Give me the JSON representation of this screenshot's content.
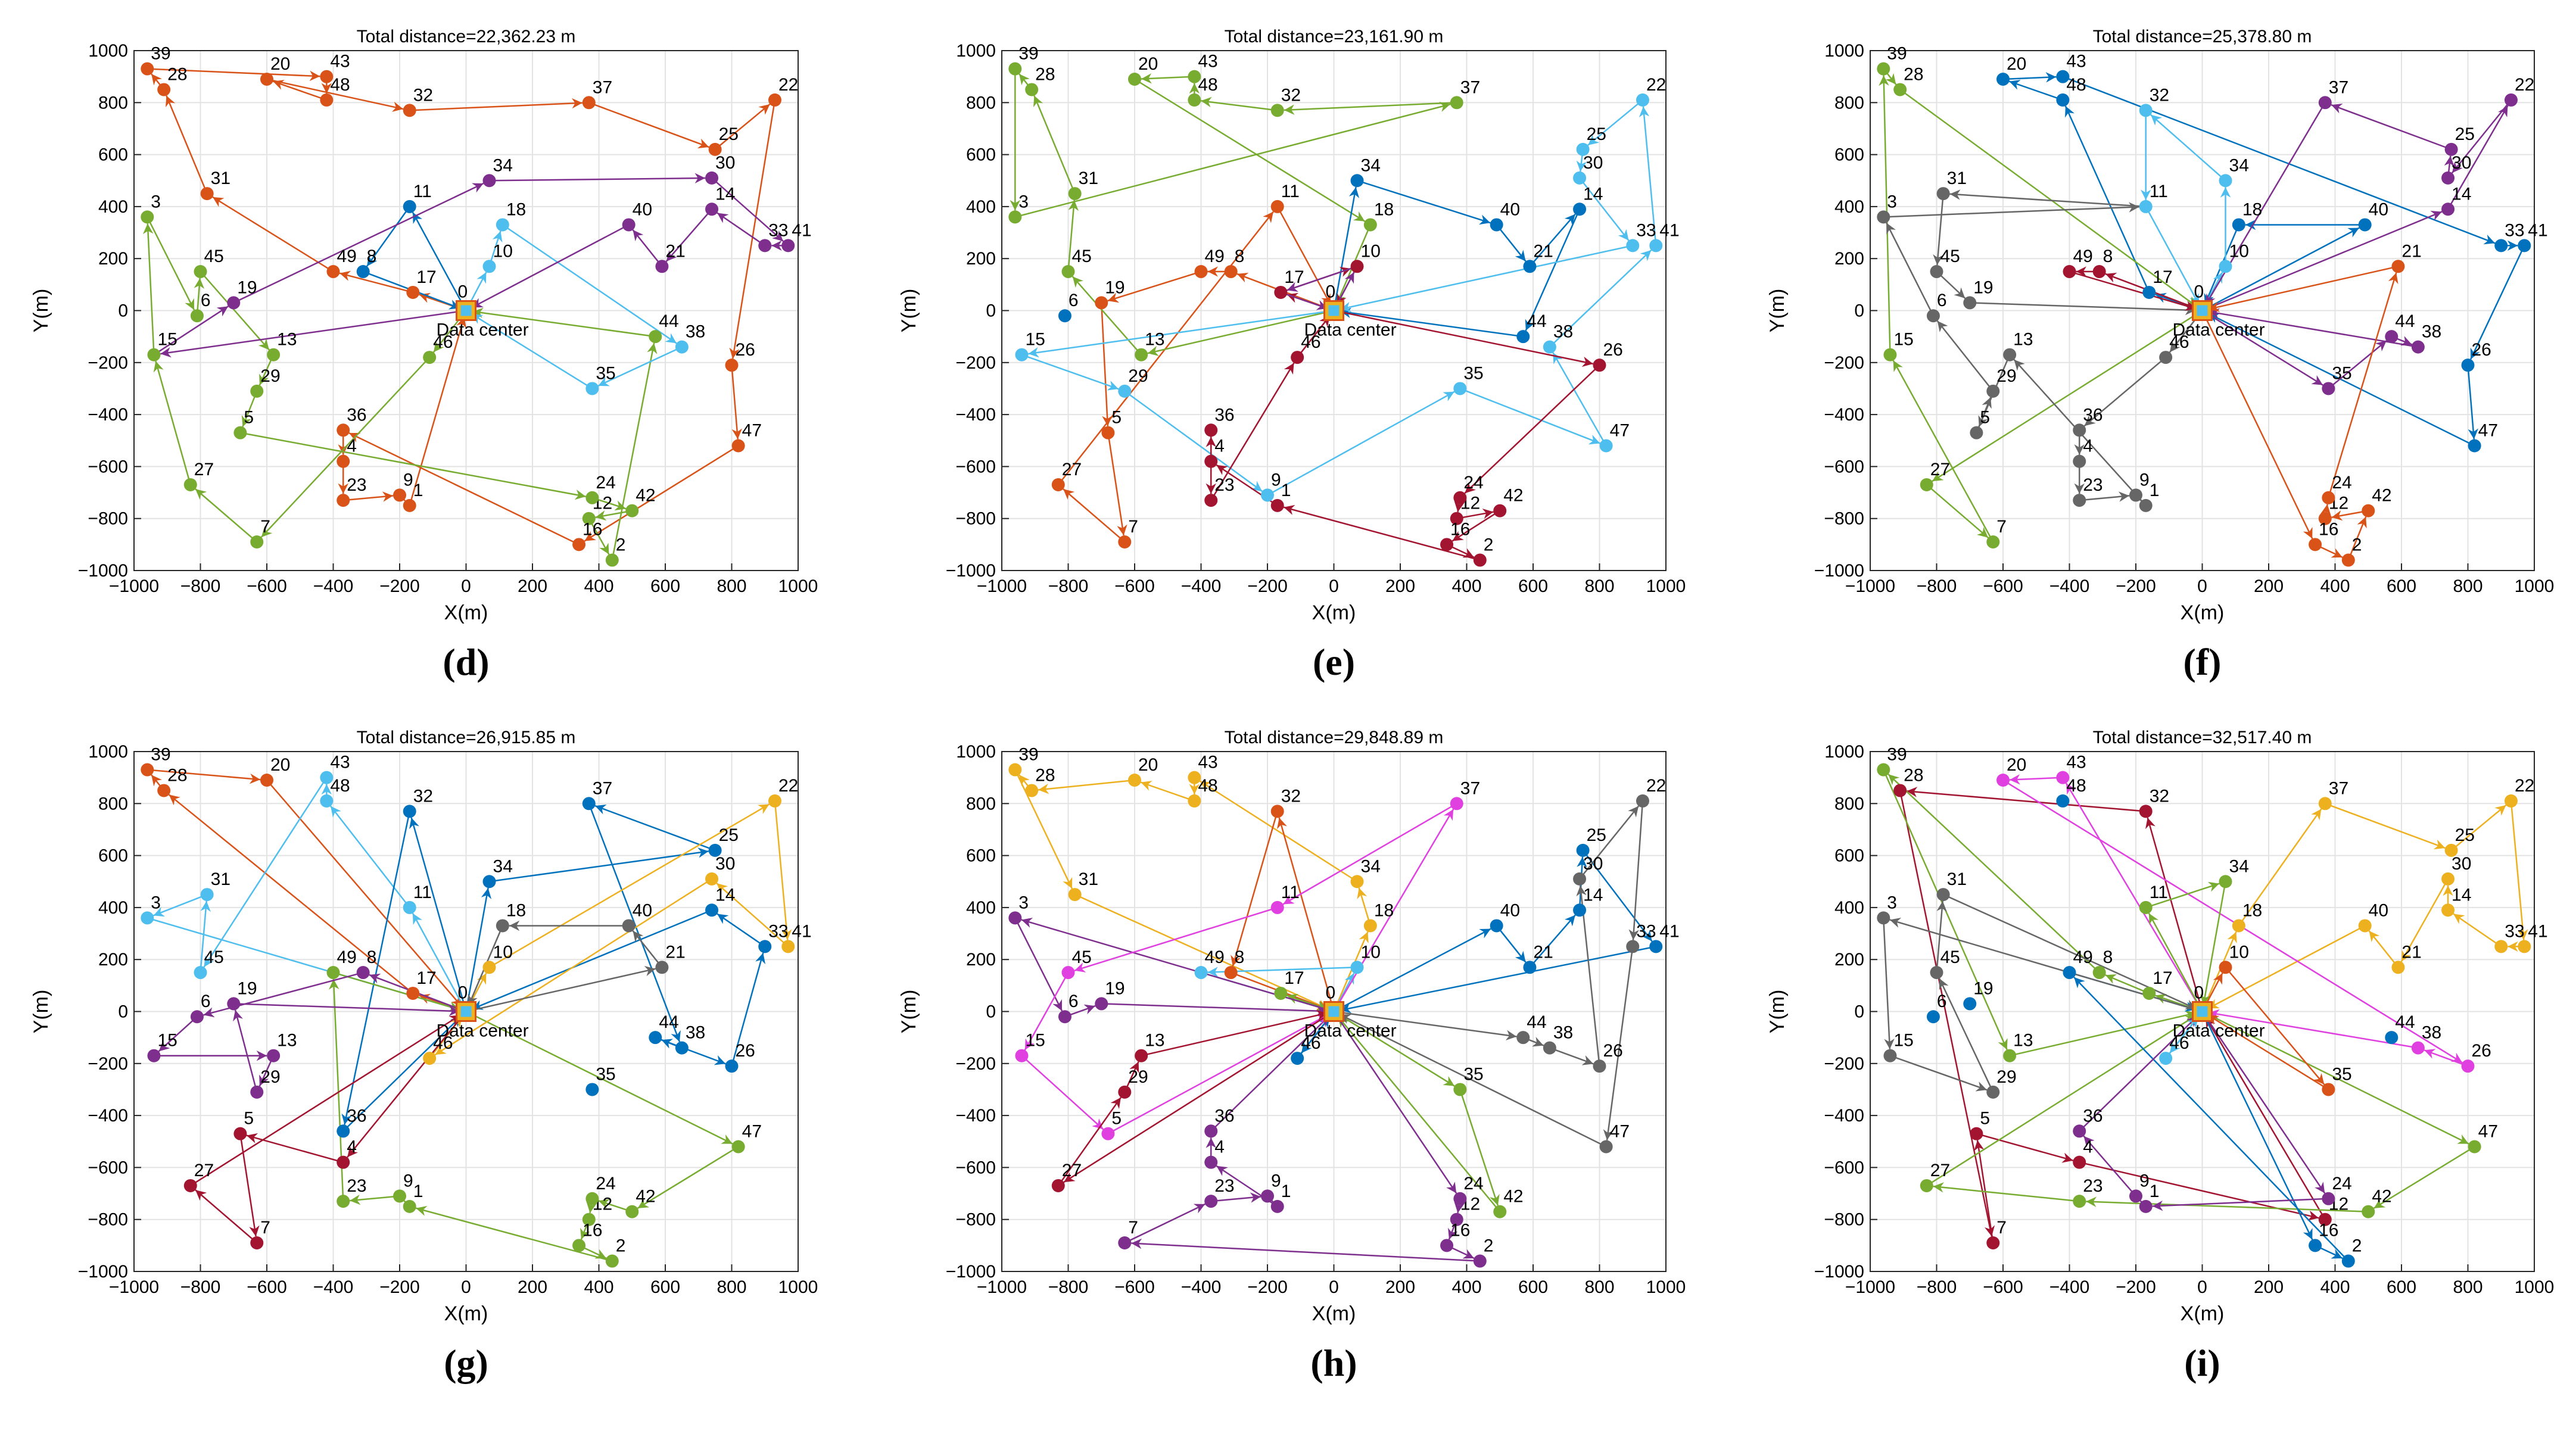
{
  "chart_data": [
    {
      "type": "scatter",
      "panel": "(d)",
      "title": "Total distance=22,362.23 m",
      "xlabel": "X(m)",
      "ylabel": "Y(m)",
      "xlim": [
        -1000,
        1000
      ],
      "ylim": [
        -1000,
        1000
      ],
      "xticks": [
        "−1000",
        "−800",
        "−600",
        "−400",
        "−200",
        "0",
        "200",
        "400",
        "600",
        "800",
        "1000"
      ],
      "yticks": [
        "−1000",
        "−800",
        "−600",
        "−400",
        "−200",
        "0",
        "200",
        "400",
        "600",
        "800",
        "1000"
      ],
      "depot_label": "Data center",
      "routes": [
        {
          "color": "#D95319",
          "path": [
            0,
            17,
            49,
            31,
            28,
            39,
            43,
            48,
            20,
            32,
            37,
            25,
            22,
            26,
            47,
            16,
            36,
            4,
            23,
            9,
            1,
            0
          ]
        },
        {
          "color": "#77AC30",
          "path": [
            0,
            46,
            7,
            27,
            15,
            3,
            6,
            45,
            13,
            29,
            5,
            24,
            42,
            12,
            2,
            44,
            0
          ]
        },
        {
          "color": "#0072BD",
          "path": [
            0,
            11,
            8,
            0
          ]
        },
        {
          "color": "#4DBEEE",
          "path": [
            0,
            10,
            18,
            38,
            35,
            0
          ]
        },
        {
          "color": "#7E2F8E",
          "path": [
            0,
            15,
            19,
            34,
            30,
            41,
            33,
            14,
            21,
            40,
            0
          ]
        }
      ]
    },
    {
      "type": "scatter",
      "panel": "(e)",
      "title": "Total distance=23,161.90 m",
      "xlabel": "X(m)",
      "ylabel": "Y(m)",
      "xlim": [
        -1000,
        1000
      ],
      "ylim": [
        -1000,
        1000
      ],
      "xticks": [
        "−1000",
        "−800",
        "−600",
        "−400",
        "−200",
        "0",
        "200",
        "400",
        "600",
        "800",
        "1000"
      ],
      "yticks": [
        "−1000",
        "−800",
        "−600",
        "−400",
        "−200",
        "0",
        "200",
        "400",
        "600",
        "800",
        "1000"
      ],
      "depot_label": "Data center",
      "routes": [
        {
          "color": "#D95319",
          "path": [
            0,
            8,
            49,
            19,
            5,
            7,
            27,
            11,
            0
          ]
        },
        {
          "color": "#77AC30",
          "path": [
            0,
            13,
            45,
            31,
            28,
            39,
            3,
            37,
            32,
            48,
            43,
            20,
            18,
            0
          ]
        },
        {
          "color": "#0072BD",
          "path": [
            0,
            34,
            40,
            21,
            14,
            44,
            0
          ]
        },
        {
          "color": "#4DBEEE",
          "path": [
            0,
            15,
            29,
            9,
            35,
            47,
            38,
            41,
            22,
            25,
            30,
            33,
            0
          ]
        },
        {
          "color": "#A2142F",
          "path": [
            0,
            17,
            10,
            0,
            26,
            24,
            12,
            42,
            16,
            2,
            1,
            4,
            36,
            23,
            46,
            0
          ]
        },
        {
          "color": "#7E2F8E",
          "path": [
            0,
            10,
            17,
            0
          ]
        }
      ]
    },
    {
      "type": "scatter",
      "panel": "(f)",
      "title": "Total distance=25,378.80 m",
      "xlabel": "X(m)",
      "ylabel": "Y(m)",
      "xlim": [
        -1000,
        1000
      ],
      "ylim": [
        -1000,
        1000
      ],
      "xticks": [
        "−1000",
        "−800",
        "−600",
        "−400",
        "−200",
        "0",
        "200",
        "400",
        "600",
        "800",
        "1000"
      ],
      "yticks": [
        "−1000",
        "−800",
        "−600",
        "−400",
        "−200",
        "0",
        "200",
        "400",
        "600",
        "800",
        "1000"
      ],
      "depot_label": "Data center",
      "routes": [
        {
          "color": "#0072BD",
          "path": [
            0,
            17,
            48,
            20,
            43,
            33,
            41,
            26,
            47,
            0,
            40,
            18,
            0
          ]
        },
        {
          "color": "#4DBEEE",
          "path": [
            0,
            10,
            34,
            32,
            11,
            0
          ]
        },
        {
          "color": "#77AC30",
          "path": [
            0,
            27,
            7,
            15,
            39,
            28,
            0
          ]
        },
        {
          "color": "#7E2F8E",
          "path": [
            0,
            14,
            22,
            30,
            25,
            37,
            0,
            35,
            44,
            38,
            0
          ]
        },
        {
          "color": "#D95319",
          "path": [
            0,
            16,
            2,
            42,
            12,
            24,
            21,
            0
          ]
        },
        {
          "color": "#666666",
          "path": [
            0,
            46,
            36,
            4,
            23,
            9,
            1,
            13,
            5,
            29,
            6,
            3,
            11,
            31,
            45,
            19,
            0
          ]
        },
        {
          "color": "#A2142F",
          "path": [
            0,
            8,
            49,
            0
          ]
        }
      ]
    },
    {
      "type": "scatter",
      "panel": "(g)",
      "title": "Total distance=26,915.85 m",
      "xlabel": "X(m)",
      "ylabel": "Y(m)",
      "xlim": [
        -1000,
        1000
      ],
      "ylim": [
        -1000,
        1000
      ],
      "xticks": [
        "−1000",
        "−800",
        "−600",
        "−400",
        "−200",
        "0",
        "200",
        "400",
        "600",
        "800",
        "1000"
      ],
      "yticks": [
        "−1000",
        "−800",
        "−600",
        "−400",
        "−200",
        "0",
        "200",
        "400",
        "600",
        "800",
        "1000"
      ],
      "depot_label": "Data center",
      "routes": [
        {
          "color": "#D95319",
          "path": [
            0,
            17,
            28,
            39,
            20,
            0
          ]
        },
        {
          "color": "#4DBEEE",
          "path": [
            0,
            11,
            48,
            43,
            45,
            31,
            3,
            0
          ]
        },
        {
          "color": "#0072BD",
          "path": [
            0,
            34,
            25,
            37,
            38,
            44,
            26,
            33,
            14,
            0,
            32,
            36,
            0
          ]
        },
        {
          "color": "#77AC30",
          "path": [
            0,
            47,
            42,
            24,
            12,
            16,
            2,
            1,
            9,
            23,
            49,
            0
          ]
        },
        {
          "color": "#EDB120",
          "path": [
            0,
            10,
            22,
            41,
            30,
            46,
            0
          ]
        },
        {
          "color": "#666666",
          "path": [
            0,
            21,
            40,
            18,
            0
          ]
        },
        {
          "color": "#7E2F8E",
          "path": [
            0,
            8,
            6,
            15,
            13,
            29,
            19,
            0
          ]
        },
        {
          "color": "#A2142F",
          "path": [
            0,
            4,
            5,
            7,
            27,
            0
          ]
        }
      ]
    },
    {
      "type": "scatter",
      "panel": "(h)",
      "title": "Total distance=29,848.89 m",
      "xlabel": "X(m)",
      "ylabel": "Y(m)",
      "xlim": [
        -1000,
        1000
      ],
      "ylim": [
        -1000,
        1000
      ],
      "xticks": [
        "−1000",
        "−800",
        "−600",
        "−400",
        "−200",
        "0",
        "200",
        "400",
        "600",
        "800",
        "1000"
      ],
      "yticks": [
        "−1000",
        "−800",
        "−600",
        "−400",
        "−200",
        "0",
        "200",
        "400",
        "600",
        "800",
        "1000"
      ],
      "depot_label": "Data center",
      "routes": [
        {
          "color": "#EDB120",
          "path": [
            0,
            18,
            34,
            43,
            48,
            20,
            28,
            39,
            31,
            0
          ]
        },
        {
          "color": "#D95319",
          "path": [
            0,
            32,
            8,
            0
          ]
        },
        {
          "color": "#4DBEEE",
          "path": [
            0,
            10,
            49,
            0
          ]
        },
        {
          "color": "#77AC30",
          "path": [
            0,
            17,
            0,
            35,
            42,
            0
          ]
        },
        {
          "color": "#0072BD",
          "path": [
            0,
            40,
            21,
            14,
            25,
            41,
            0,
            46,
            0
          ]
        },
        {
          "color": "#666666",
          "path": [
            0,
            44,
            38,
            26,
            30,
            22,
            33,
            47,
            0
          ]
        },
        {
          "color": "#7E2F8E",
          "path": [
            0,
            3,
            6,
            19,
            0,
            24,
            12,
            16,
            2,
            7,
            23,
            9,
            1,
            4,
            36,
            0
          ]
        },
        {
          "color": "#E040E0",
          "path": [
            0,
            37,
            11,
            45,
            15,
            5,
            0
          ]
        },
        {
          "color": "#A2142F",
          "path": [
            0,
            27,
            29,
            13,
            0
          ]
        }
      ]
    },
    {
      "type": "scatter",
      "panel": "(i)",
      "title": "Total distance=32,517.40 m",
      "xlabel": "X(m)",
      "ylabel": "Y(m)",
      "xlim": [
        -1000,
        1000
      ],
      "ylim": [
        -1000,
        1000
      ],
      "xticks": [
        "−1000",
        "−800",
        "−600",
        "−400",
        "−200",
        "0",
        "200",
        "400",
        "600",
        "800",
        "1000"
      ],
      "yticks": [
        "−1000",
        "−800",
        "−600",
        "−400",
        "−200",
        "0",
        "200",
        "400",
        "600",
        "800",
        "1000"
      ],
      "depot_label": "Data center",
      "routes": [
        {
          "color": "#EDB120",
          "path": [
            0,
            18,
            37,
            25,
            22,
            41,
            33,
            14,
            30,
            21,
            40,
            0
          ]
        },
        {
          "color": "#A2142F",
          "path": [
            0,
            32,
            28,
            7,
            5,
            4,
            12,
            0
          ]
        },
        {
          "color": "#E040E0",
          "path": [
            0,
            43,
            20,
            26,
            38,
            0
          ]
        },
        {
          "color": "#77AC30",
          "path": [
            0,
            47,
            42,
            23,
            27,
            0,
            17,
            8,
            39,
            13,
            0,
            11,
            34,
            0
          ]
        },
        {
          "color": "#0072BD",
          "path": [
            0,
            16,
            2,
            49,
            0
          ]
        },
        {
          "color": "#666666",
          "path": [
            0,
            3,
            15,
            29,
            45,
            31,
            0
          ]
        },
        {
          "color": "#D95319",
          "path": [
            0,
            10,
            35,
            0
          ]
        },
        {
          "color": "#7E2F8E",
          "path": [
            0,
            24,
            1,
            9,
            36,
            0
          ]
        },
        {
          "color": "#4DBEEE",
          "path": [
            0,
            46,
            0
          ]
        }
      ]
    }
  ]
}
